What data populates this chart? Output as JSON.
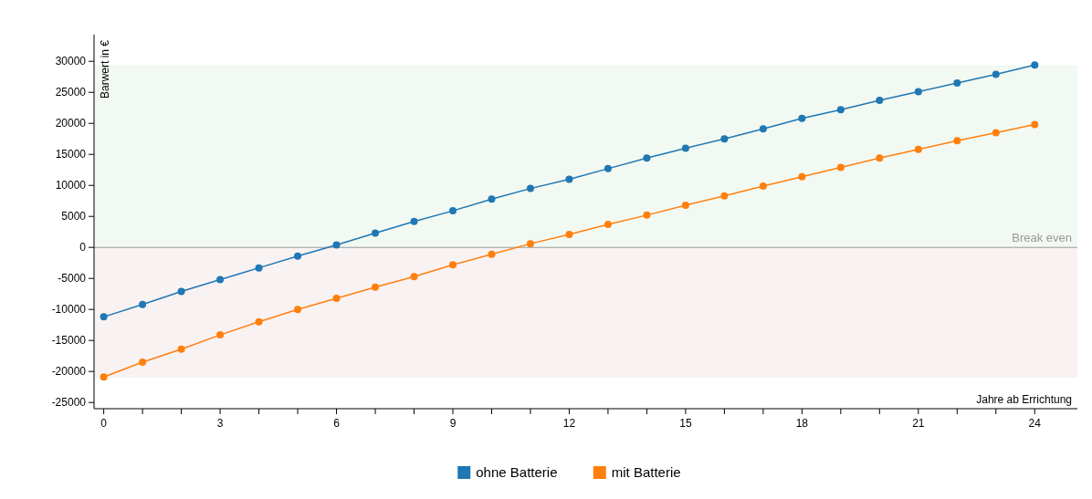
{
  "chart_data": {
    "type": "line",
    "xlabel": "Jahre ab Errichtung",
    "ylabel": "Barwert in €",
    "x": [
      0,
      1,
      2,
      3,
      4,
      5,
      6,
      7,
      8,
      9,
      10,
      11,
      12,
      13,
      14,
      15,
      16,
      17,
      18,
      19,
      20,
      21,
      22,
      23,
      24
    ],
    "series": [
      {
        "name": "ohne Batterie",
        "color": "#1f77b4",
        "values": [
          -11200,
          -9200,
          -7100,
          -5200,
          -3300,
          -1400,
          400,
          2300,
          4200,
          5900,
          7800,
          9500,
          11000,
          12700,
          14400,
          16000,
          17500,
          19100,
          20800,
          22200,
          23700,
          25100,
          26500,
          27900,
          29400
        ]
      },
      {
        "name": "mit Batterie",
        "color": "#ff7f0e",
        "values": [
          -20900,
          -18500,
          -16400,
          -14100,
          -12000,
          -10000,
          -8200,
          -6400,
          -4700,
          -2800,
          -1100,
          600,
          2100,
          3700,
          5200,
          6800,
          8300,
          9900,
          11400,
          12900,
          14400,
          15800,
          17200,
          18500,
          19800
        ]
      }
    ],
    "xlim": [
      -0.25,
      25.1
    ],
    "xticks": [
      0,
      {
        "value": 1,
        "label": null
      },
      {
        "value": 2,
        "label": null
      },
      3,
      {
        "value": 4,
        "label": null
      },
      {
        "value": 5,
        "label": null
      },
      6,
      {
        "value": 7,
        "label": null
      },
      {
        "value": 8,
        "label": null
      },
      9,
      {
        "value": 10,
        "label": null
      },
      {
        "value": 11,
        "label": null
      },
      12,
      {
        "value": 13,
        "label": null
      },
      {
        "value": 14,
        "label": null
      },
      15,
      {
        "value": 16,
        "label": null
      },
      {
        "value": 17,
        "label": null
      },
      18,
      {
        "value": 19,
        "label": null
      },
      {
        "value": 20,
        "label": null
      },
      21,
      {
        "value": 22,
        "label": null
      },
      {
        "value": 23,
        "label": null
      },
      24
    ],
    "ylim": [
      -26000,
      34300
    ],
    "yticks": [
      -25000,
      -20000,
      -15000,
      -10000,
      -5000,
      0,
      5000,
      10000,
      15000,
      20000,
      25000,
      30000
    ],
    "ref_lines": [
      {
        "axis": "y",
        "value": 0,
        "label": "Break even",
        "color": "#999999"
      }
    ],
    "bands": [
      {
        "axis": "y",
        "from": 0,
        "to": 29400,
        "color": "#f2f9f2"
      },
      {
        "axis": "y",
        "from": -21000,
        "to": 0,
        "color": "#f9f2f2"
      }
    ],
    "grid": false,
    "legend": "bottom",
    "marker": "circle",
    "line_style": "solid"
  }
}
